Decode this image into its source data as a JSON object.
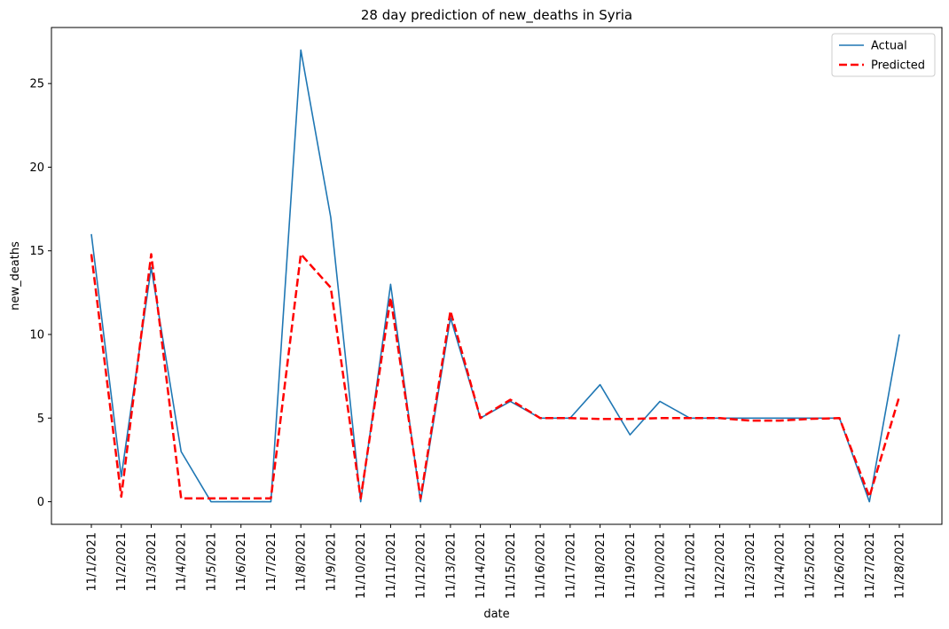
{
  "chart_data": {
    "type": "line",
    "title": "28 day prediction of new_deaths in Syria",
    "xlabel": "date",
    "ylabel": "new_deaths",
    "categories": [
      "11/1/2021",
      "11/2/2021",
      "11/3/2021",
      "11/4/2021",
      "11/5/2021",
      "11/6/2021",
      "11/7/2021",
      "11/8/2021",
      "11/9/2021",
      "11/10/2021",
      "11/11/2021",
      "11/12/2021",
      "11/13/2021",
      "11/14/2021",
      "11/15/2021",
      "11/16/2021",
      "11/17/2021",
      "11/18/2021",
      "11/19/2021",
      "11/20/2021",
      "11/21/2021",
      "11/22/2021",
      "11/23/2021",
      "11/24/2021",
      "11/25/2021",
      "11/26/2021",
      "11/27/2021",
      "11/28/2021"
    ],
    "ylim": [
      -1.35,
      28.35
    ],
    "yticks": [
      0,
      5,
      10,
      15,
      20,
      25
    ],
    "grid": false,
    "legend_position": "top-right",
    "series": [
      {
        "name": "Actual",
        "color": "#1f77b4",
        "style": "solid",
        "values": [
          16,
          1.5,
          14,
          3,
          0,
          0,
          0,
          27,
          17,
          0,
          13,
          0,
          11,
          5,
          6,
          5,
          5,
          7,
          4,
          6,
          5,
          5,
          5,
          5,
          5,
          5,
          0,
          10
        ]
      },
      {
        "name": "Predicted",
        "color": "#ff0000",
        "style": "dashed",
        "values": [
          14.8,
          0.3,
          14.8,
          0.2,
          0.2,
          0.2,
          0.2,
          14.8,
          12.8,
          0.2,
          12.2,
          0.2,
          11.4,
          5.0,
          6.1,
          5.0,
          5.0,
          4.95,
          4.95,
          5.0,
          5.0,
          5.0,
          4.85,
          4.85,
          4.95,
          5.0,
          0.3,
          6.3
        ]
      }
    ]
  }
}
